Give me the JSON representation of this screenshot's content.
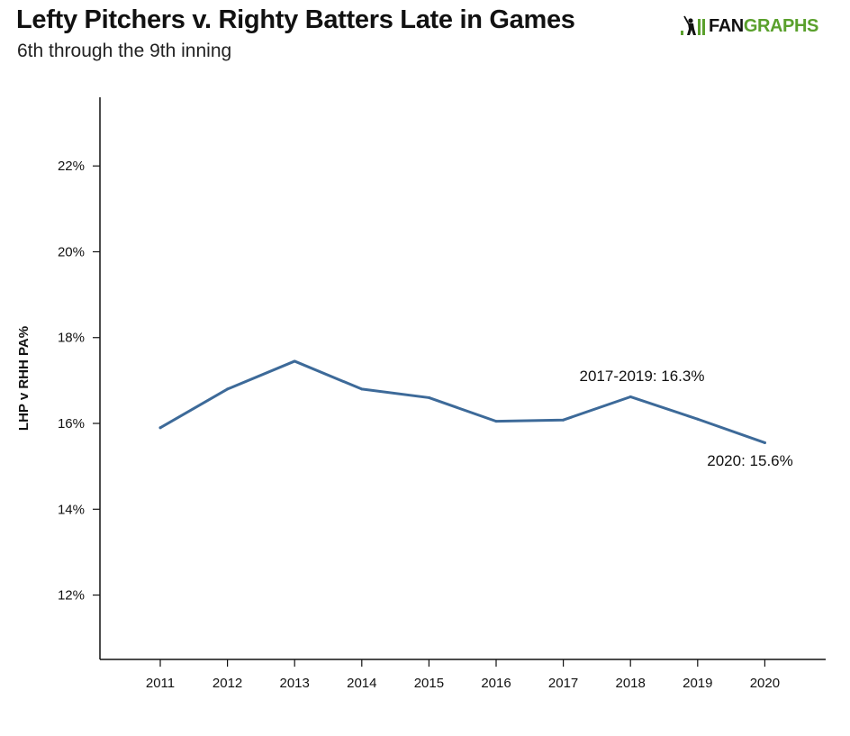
{
  "header": {
    "title": "Lefty Pitchers v. Righty Batters Late in Games",
    "subtitle": "6th through the 9th inning",
    "logo_text_dark": "FAN",
    "logo_text_green": "GRAPHS"
  },
  "colors": {
    "line": "#3d6a99",
    "axis": "#111111",
    "logo_green": "#5aa02c"
  },
  "chart_data": {
    "type": "line",
    "title": "Lefty Pitchers v. Righty Batters Late in Games",
    "subtitle": "6th through the 9th inning",
    "xlabel": "",
    "ylabel": "LHP v RHH PA%",
    "categories": [
      "2011",
      "2012",
      "2013",
      "2014",
      "2015",
      "2016",
      "2017",
      "2018",
      "2019",
      "2020"
    ],
    "series": [
      {
        "values": [
          15.9,
          16.8,
          17.45,
          16.8,
          16.6,
          16.05,
          16.08,
          16.62,
          16.1,
          15.55
        ]
      }
    ],
    "y_ticks": [
      12,
      14,
      16,
      18,
      20,
      22
    ],
    "y_tick_labels": [
      "12%",
      "14%",
      "16%",
      "18%",
      "20%",
      "22%"
    ],
    "ylim": [
      10.5,
      23.6
    ],
    "grid": false,
    "legend": "none",
    "annotations": [
      {
        "text": "2017-2019: 16.3%",
        "x": "2017",
        "y": 16.3
      },
      {
        "text": "2020: 15.6%",
        "x": "2020",
        "y": 15.6
      }
    ]
  }
}
